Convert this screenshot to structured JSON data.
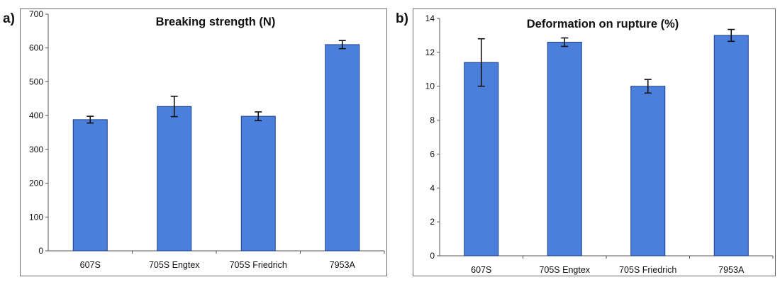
{
  "chart_data": [
    {
      "panel_label": "a)",
      "type": "bar",
      "title": "Breaking strength (N)",
      "xlabel": "",
      "ylabel": "",
      "categories": [
        "607S",
        "705S Engtex",
        "705S Friedrich",
        "7953A"
      ],
      "series": [
        {
          "values": [
            388,
            427,
            398,
            610
          ],
          "error": [
            10,
            30,
            13,
            12
          ]
        }
      ],
      "ylim": [
        0,
        700
      ],
      "yticks": [
        0,
        100,
        200,
        300,
        400,
        500,
        600,
        700
      ],
      "grid": false,
      "bar_color": "#4a7fdc",
      "bar_edge_color": "#1b3f8c"
    },
    {
      "panel_label": "b)",
      "type": "bar",
      "title": "Deformation on rupture (%)",
      "xlabel": "",
      "ylabel": "",
      "categories": [
        "607S",
        "705S Engtex",
        "705S Friedrich",
        "7953A"
      ],
      "series": [
        {
          "values": [
            11.4,
            12.6,
            10.0,
            13.0
          ],
          "error": [
            1.4,
            0.25,
            0.4,
            0.35
          ]
        }
      ],
      "ylim": [
        0,
        14
      ],
      "yticks": [
        0,
        2,
        4,
        6,
        8,
        10,
        12,
        14
      ],
      "grid": false,
      "bar_color": "#4a7fdc",
      "bar_edge_color": "#1b3f8c"
    }
  ]
}
